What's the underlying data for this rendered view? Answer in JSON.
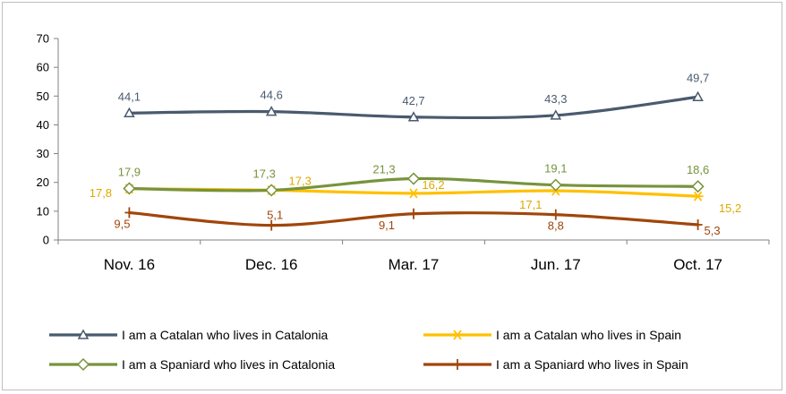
{
  "chart_data": {
    "type": "line",
    "categories": [
      "Nov. 16",
      "Dec. 16",
      "Mar. 17",
      "Jun. 17",
      "Oct. 17"
    ],
    "ylim": [
      0,
      70
    ],
    "yticks": [
      "0",
      "10",
      "20",
      "30",
      "40",
      "50",
      "60",
      "70"
    ],
    "grid": false,
    "legend_position": "bottom",
    "series": [
      {
        "name": "I am a Catalan who lives in Catalonia",
        "values": [
          44.1,
          44.6,
          42.7,
          43.3,
          49.7
        ],
        "labels": [
          "44,1",
          "44,6",
          "42,7",
          "43,3",
          "49,7"
        ],
        "color": "#4a5a6e",
        "label_color": "#4a5a6e",
        "marker": "triangle"
      },
      {
        "name": "I am a Catalan who lives in Spain",
        "values": [
          17.8,
          17.3,
          16.2,
          17.1,
          15.2
        ],
        "labels": [
          "17,8",
          "17,3",
          "16,2",
          "17,1",
          "15,2"
        ],
        "color": "#ffc000",
        "label_color": "#e0a800",
        "marker": "asterisk"
      },
      {
        "name": "I am a Spaniard who lives in Catalonia",
        "values": [
          17.9,
          17.3,
          21.3,
          19.1,
          18.6
        ],
        "labels": [
          "17,9",
          "17,3",
          "21,3",
          "19,1",
          "18,6"
        ],
        "color": "#77933c",
        "label_color": "#77933c",
        "marker": "diamond"
      },
      {
        "name": "I am a Spaniard who lives in Spain",
        "values": [
          9.5,
          5.1,
          9.1,
          8.8,
          5.3
        ],
        "labels": [
          "9,5",
          "5,1",
          "9,1",
          "8,8",
          "5,3"
        ],
        "color": "#a0460a",
        "label_color": "#a0460a",
        "marker": "plus"
      }
    ]
  }
}
